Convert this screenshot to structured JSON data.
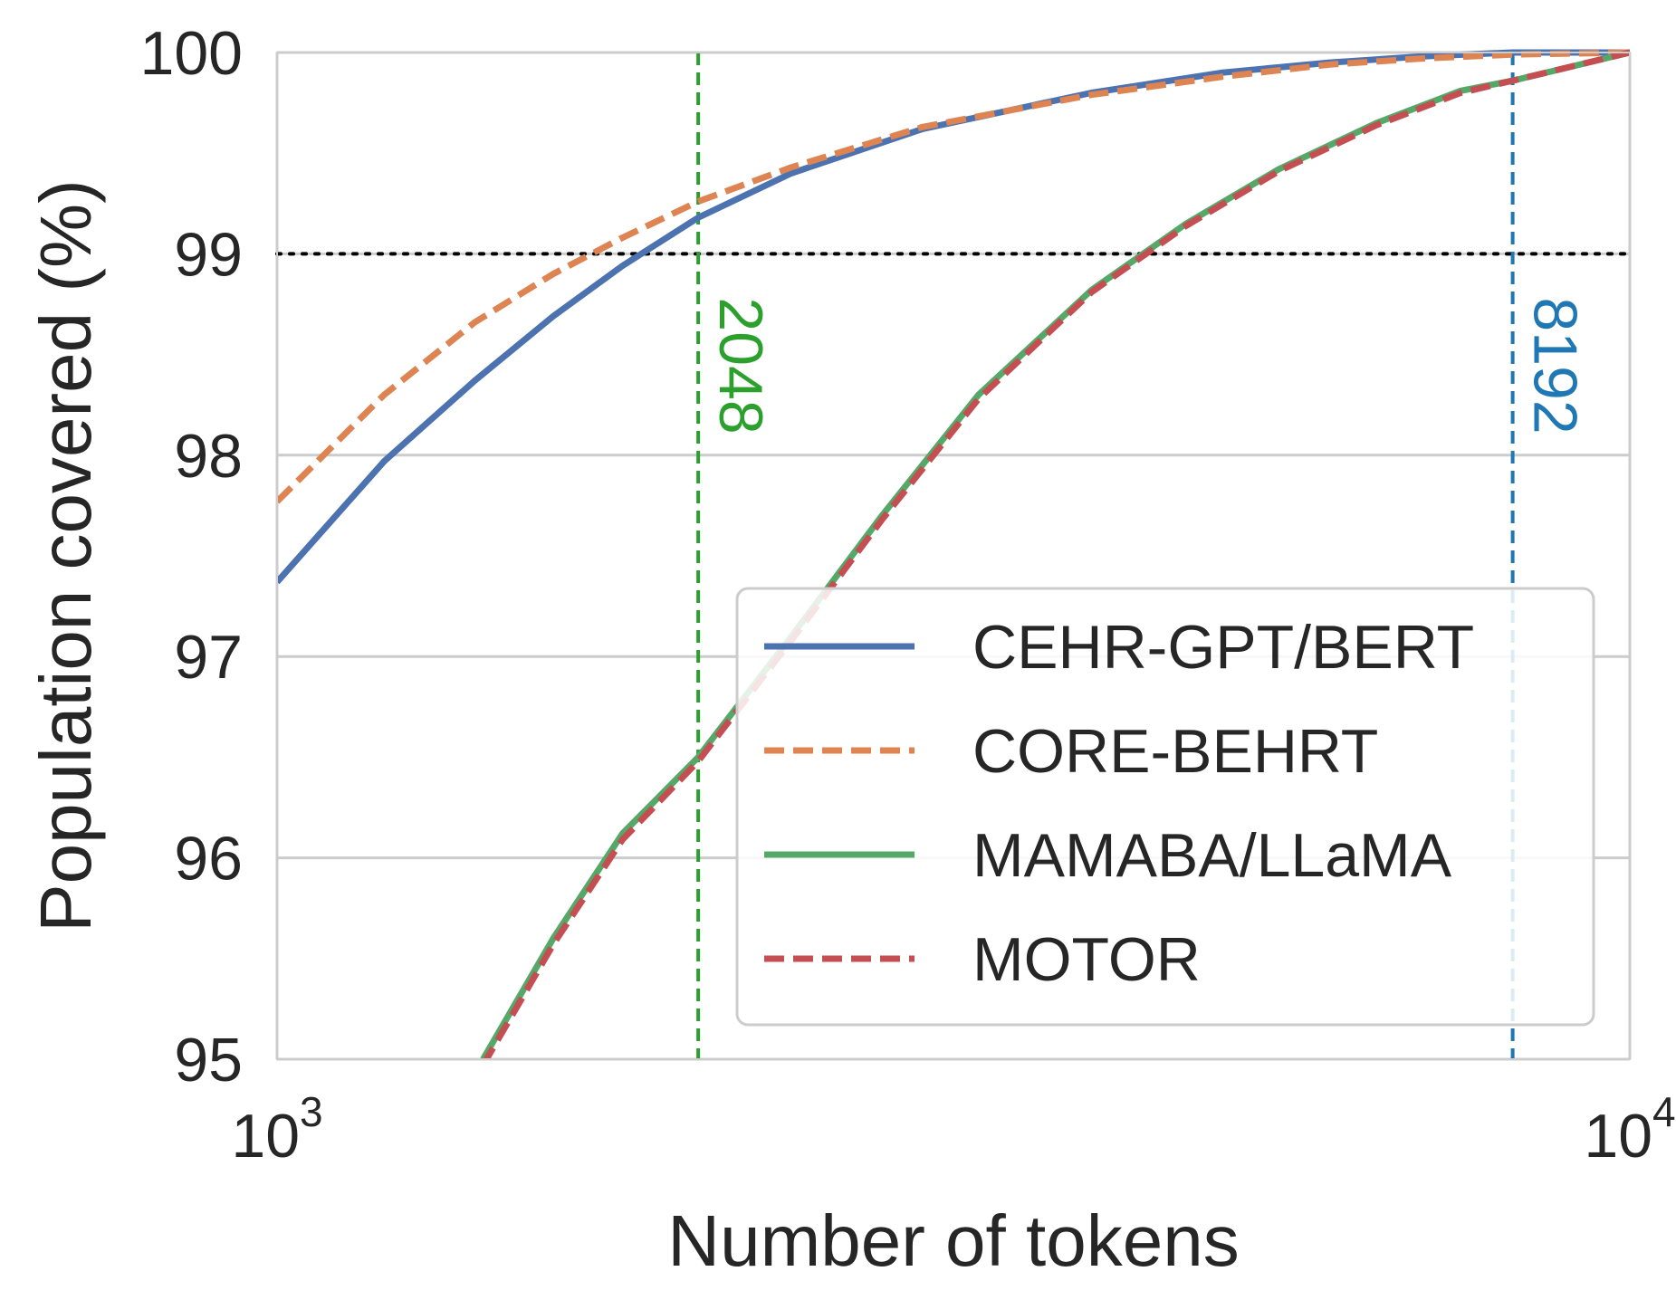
{
  "chart_data": {
    "type": "line",
    "xlabel": "Number of tokens",
    "ylabel": "Population covered (%)",
    "xscale": "log",
    "xlim": [
      1000,
      10000
    ],
    "ylim": [
      95,
      100
    ],
    "x_ticks": [
      {
        "value": 1000,
        "base": "10",
        "exp": "3"
      },
      {
        "value": 10000,
        "base": "10",
        "exp": "4"
      }
    ],
    "y_ticks": [
      95,
      96,
      97,
      98,
      99,
      100
    ],
    "grid": true,
    "legend_position": "lower-right",
    "hline": {
      "y": 99,
      "style": "dotted",
      "color": "#000000"
    },
    "vlines": [
      {
        "x": 2048,
        "label": "2048",
        "color": "#2ca02c"
      },
      {
        "x": 8192,
        "label": "8192",
        "color": "#1f77b4"
      }
    ],
    "series": [
      {
        "name": "CEHR-GPT/BERT",
        "color": "#4c72b0",
        "dash": "solid",
        "x": [
          1000,
          1200,
          1400,
          1600,
          1800,
          2048,
          2400,
          3000,
          4000,
          5000,
          6000,
          7000,
          8192,
          10000
        ],
        "y": [
          97.37,
          97.97,
          98.37,
          98.69,
          98.94,
          99.18,
          99.4,
          99.62,
          99.8,
          99.9,
          99.95,
          99.98,
          100.0,
          100.0
        ]
      },
      {
        "name": "CORE-BEHRT",
        "color": "#dd8452",
        "dash": "dashed",
        "x": [
          1000,
          1200,
          1400,
          1600,
          1800,
          2048,
          2400,
          3000,
          4000,
          5000,
          6000,
          7000,
          8192,
          10000
        ],
        "y": [
          97.77,
          98.3,
          98.66,
          98.9,
          99.08,
          99.26,
          99.43,
          99.63,
          99.79,
          99.88,
          99.94,
          99.97,
          99.99,
          100.0
        ]
      },
      {
        "name": "MAMABA/LLaMA",
        "color": "#55a868",
        "dash": "solid",
        "x": [
          1420,
          1600,
          1800,
          2048,
          2400,
          2800,
          3300,
          4000,
          4700,
          5500,
          6500,
          7500,
          8192,
          10000
        ],
        "y": [
          95.0,
          95.6,
          96.12,
          96.5,
          97.1,
          97.7,
          98.3,
          98.82,
          99.15,
          99.42,
          99.65,
          99.81,
          99.86,
          100.0
        ]
      },
      {
        "name": "MOTOR",
        "color": "#c44e52",
        "dash": "dashed",
        "x": [
          1420,
          1600,
          1800,
          2048,
          2400,
          2800,
          3300,
          4000,
          4700,
          5500,
          6500,
          7500,
          8192,
          10000
        ],
        "y": [
          94.97,
          95.57,
          96.09,
          96.48,
          97.08,
          97.68,
          98.28,
          98.81,
          99.14,
          99.41,
          99.64,
          99.8,
          99.86,
          100.0
        ]
      }
    ]
  }
}
